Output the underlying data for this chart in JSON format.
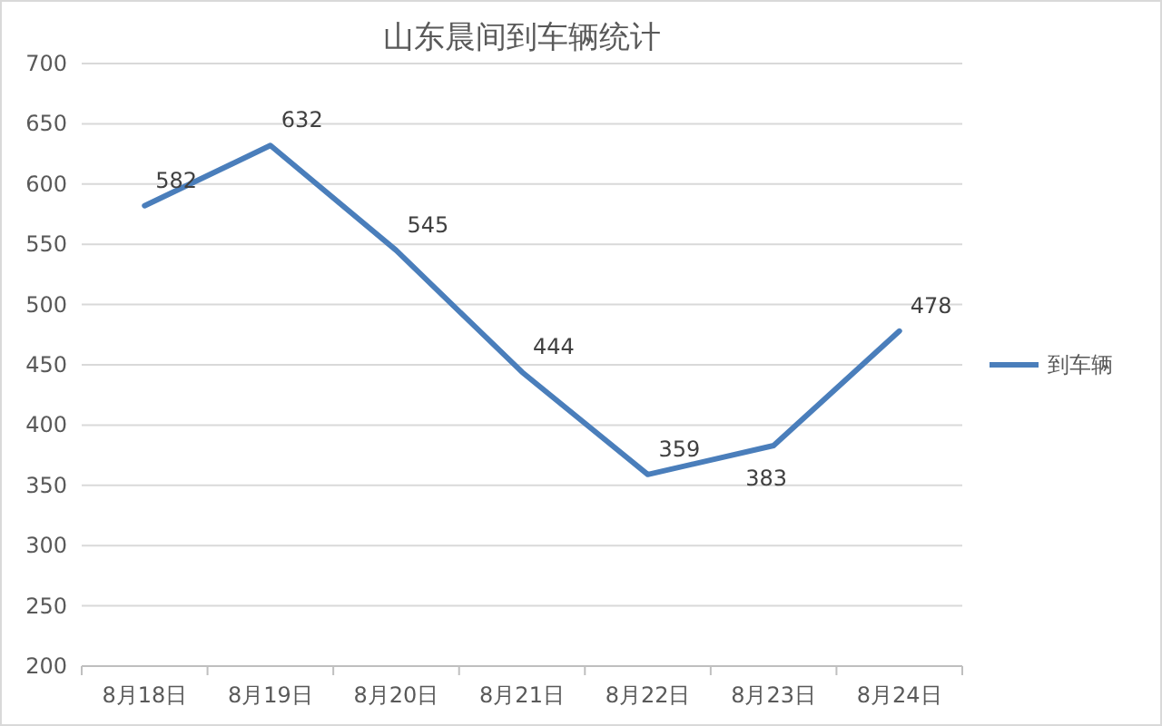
{
  "chart_data": {
    "type": "line",
    "title": "山东晨间到车辆统计",
    "categories": [
      "8月18日",
      "8月19日",
      "8月20日",
      "8月21日",
      "8月22日",
      "8月23日",
      "8月24日"
    ],
    "series": [
      {
        "name": "到车辆",
        "color": "#4a7ebb",
        "values": [
          582,
          632,
          545,
          444,
          359,
          383,
          478
        ]
      }
    ],
    "ylim": [
      200,
      700
    ],
    "yticks": [
      200,
      250,
      300,
      350,
      400,
      450,
      500,
      550,
      600,
      650,
      700
    ],
    "grid": "y",
    "legend": "right",
    "data_labels": true
  }
}
